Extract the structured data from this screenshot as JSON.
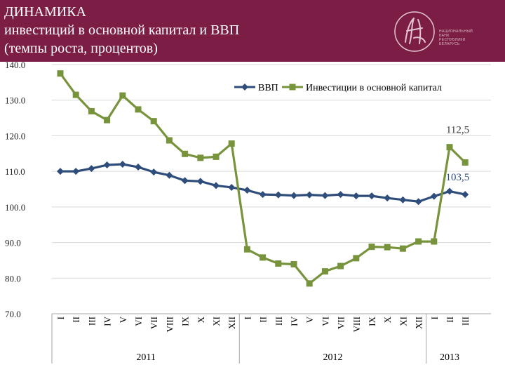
{
  "header": {
    "title_line1": "ДИНАМИКА",
    "title_line2": "инвестиций в основной капитал и ВВП",
    "title_line3": "(темпы роста, процентов)",
    "logo_text_line1": "НАЦИОНАЛЬНЫЙ",
    "logo_text_line2": "БАНК",
    "logo_text_line3": "РЕСПУБЛИКИ",
    "logo_text_line4": "БЕЛАРУСЬ"
  },
  "colors": {
    "header_bg": "#7b1d45",
    "gdp": "#2e4d7b",
    "investment": "#77933c",
    "grid": "#d9d9d9"
  },
  "chart_data": {
    "type": "line",
    "y_ticks": [
      "140.0",
      "130.0",
      "120.0",
      "110.0",
      "100.0",
      "90.0",
      "80.0",
      "70.0"
    ],
    "ylim": [
      70,
      140
    ],
    "categories": [
      "I",
      "II",
      "III",
      "IV",
      "V",
      "VI",
      "VII",
      "VIII",
      "IX",
      "X",
      "XI",
      "XII",
      "I",
      "II",
      "III",
      "IV",
      "V",
      "VI",
      "VII",
      "VIII",
      "IX",
      "X",
      "XI",
      "XII",
      "I",
      "II",
      "III"
    ],
    "year_groups": [
      {
        "label": "2011",
        "count": 12
      },
      {
        "label": "2012",
        "count": 12
      },
      {
        "label": "2013",
        "count": 3
      }
    ],
    "series": [
      {
        "name": "ВВП",
        "marker": "diamond",
        "color": "#2e4d7b",
        "values": [
          110.0,
          110.0,
          110.8,
          111.8,
          112.0,
          111.2,
          109.8,
          108.9,
          107.4,
          107.2,
          106.0,
          105.5,
          104.7,
          103.5,
          103.4,
          103.2,
          103.4,
          103.2,
          103.5,
          103.1,
          103.1,
          102.5,
          102.0,
          101.5,
          103.0,
          104.4,
          103.5
        ],
        "end_label": "103,5"
      },
      {
        "name": "Инвестиции в основной капитал",
        "marker": "square",
        "color": "#77933c",
        "values": [
          137.5,
          131.5,
          126.9,
          124.4,
          131.3,
          127.4,
          124.1,
          118.7,
          114.9,
          113.8,
          114.1,
          117.8,
          88.1,
          85.8,
          84.1,
          83.9,
          78.5,
          81.9,
          83.4,
          85.6,
          88.8,
          88.7,
          88.3,
          90.3,
          90.3,
          116.8,
          112.5
        ],
        "end_label": "112,5"
      }
    ]
  }
}
